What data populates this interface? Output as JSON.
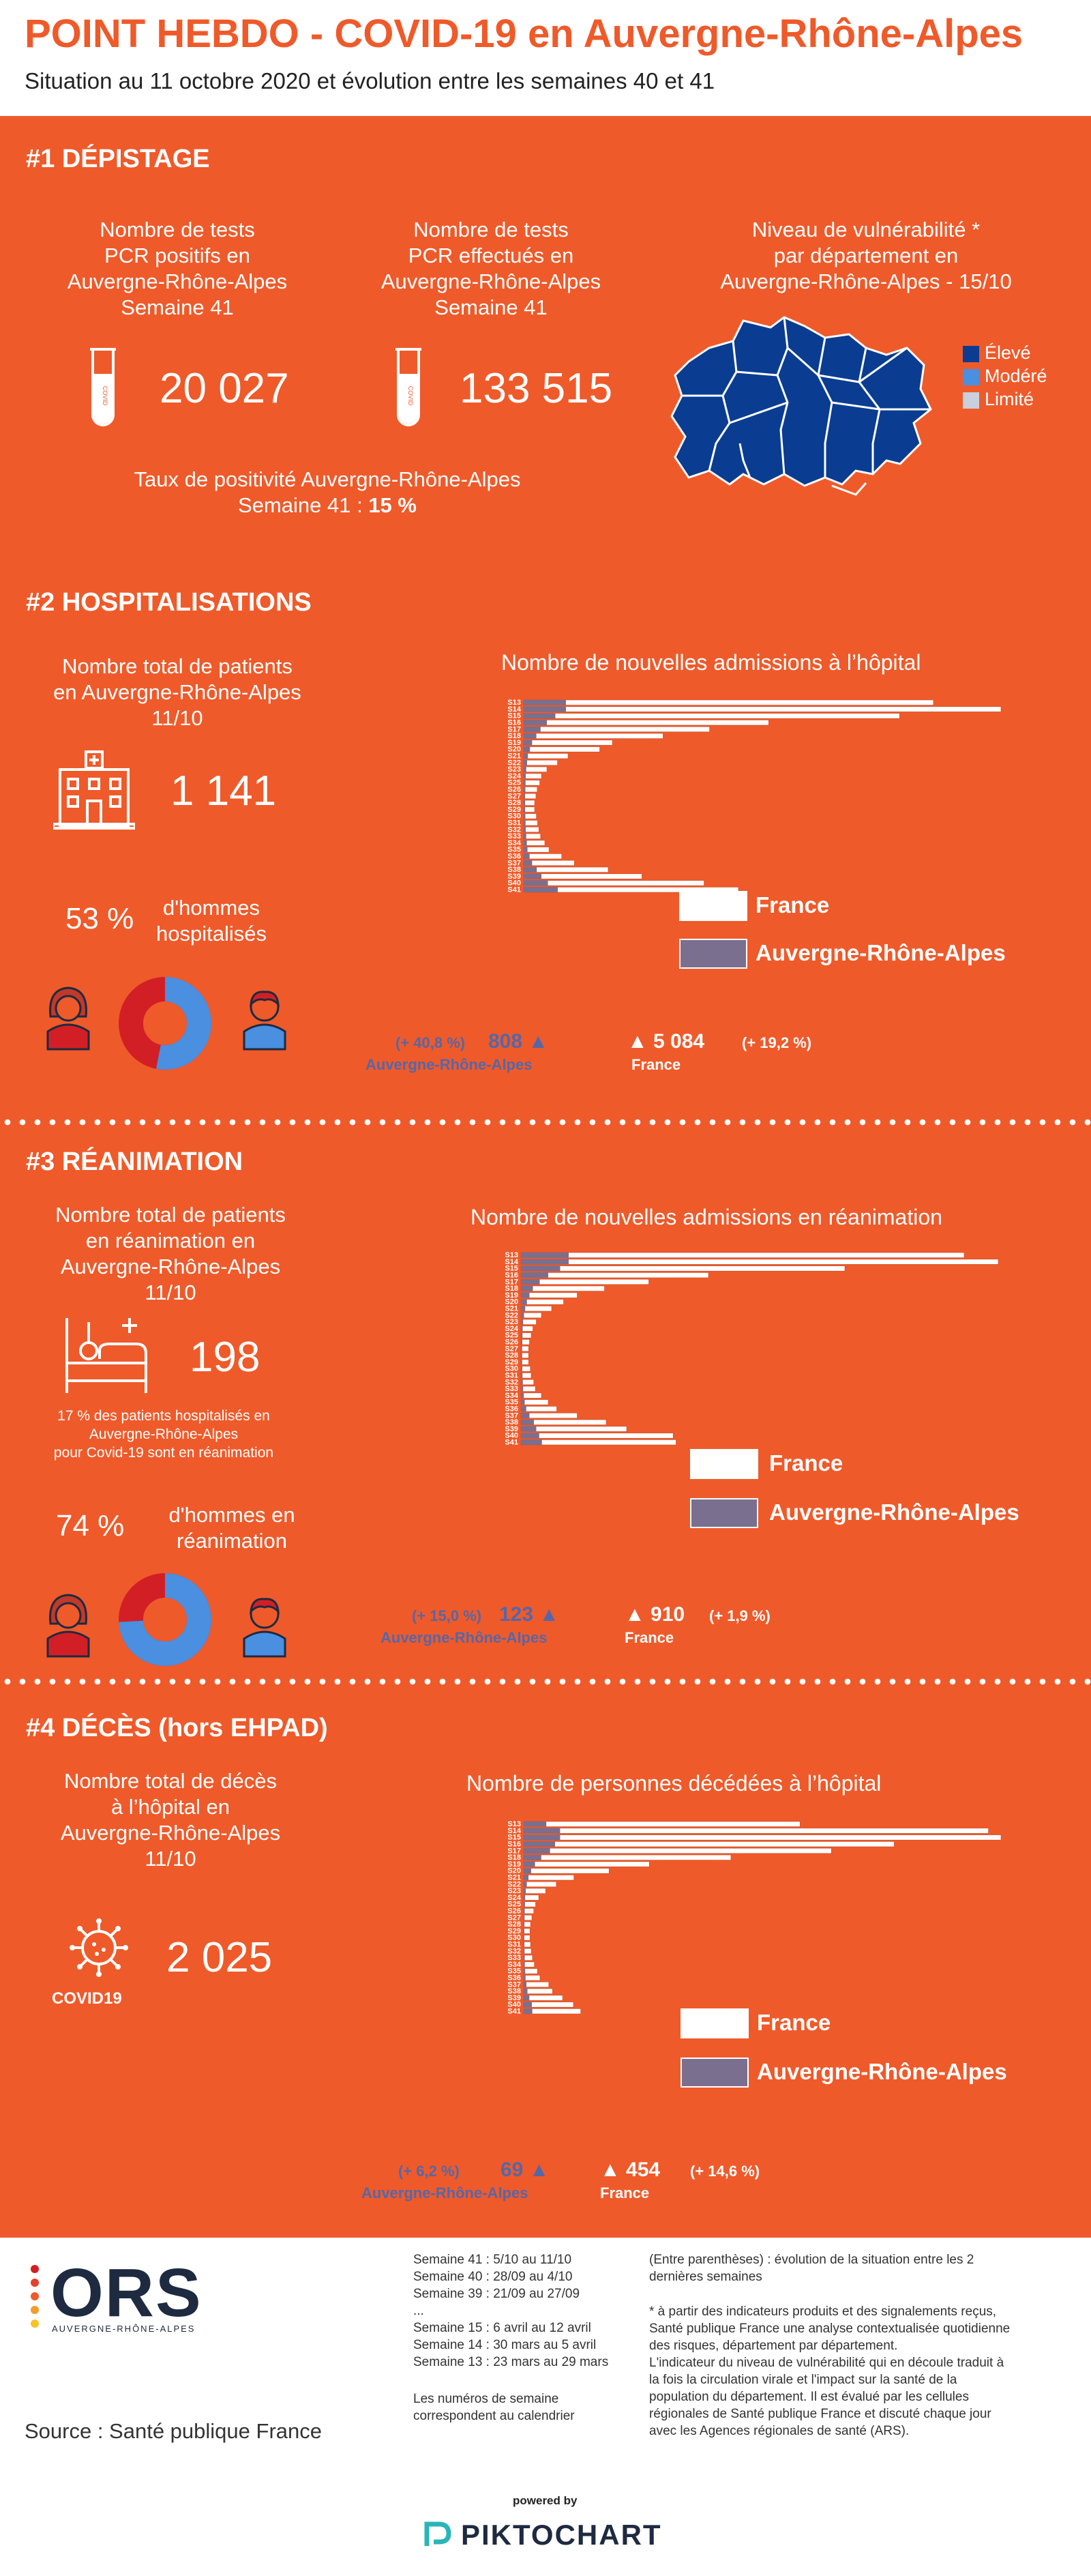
{
  "header": {
    "title": "POINT HEBDO - COVID-19 en Auvergne-Rhône-Alpes",
    "subtitle": "Situation au 11 octobre 2020 et évolution entre les semaines 40 et 41"
  },
  "colors": {
    "orange": "#ef5a2a",
    "france_bar": "#ffffff",
    "ara_bar": "#7a6f8f",
    "stat_blue": "#5567a8",
    "map_blue": "#0a3d91",
    "donut_red": "#d21f26",
    "donut_blue": "#4a8fe0",
    "level_high": "#0a3d91",
    "level_mid": "#4a8fe0",
    "level_low": "#c9cfdc"
  },
  "depistage": {
    "title": "#1 DÉPISTAGE",
    "positive_label": "Nombre de tests\nPCR positifs en\nAuvergne-Rhône-Alpes\nSemaine 41",
    "positive_value": "20 027",
    "performed_label": "Nombre de tests\nPCR effectués en\nAuvergne-Rhône-Alpes\nSemaine 41",
    "performed_value": "133 515",
    "tube_text": "COVID",
    "positivity_label": "Taux de positivité Auvergne-Rhône-Alpes",
    "positivity_line2": "Semaine 41 : ",
    "positivity_value": "15 %",
    "map_label": "Niveau de vulnérabilité *\npar département en\nAuvergne-Rhône-Alpes - 15/10",
    "legend": [
      {
        "label": "Élevé",
        "color": "#0a3d91"
      },
      {
        "label": "Modéré",
        "color": "#4a8fe0"
      },
      {
        "label": "Limité",
        "color": "#c9cfdc"
      }
    ]
  },
  "hospital": {
    "title": "#2 HOSPITALISATIONS",
    "total_label": "Nombre total de patients\nen Auvergne-Rhône-Alpes\n11/10",
    "total_value": "1 141",
    "men_pct": "53 %",
    "men_label": "d'hommes\nhospitalisés",
    "men_fraction": 0.53,
    "chart_title": "Nombre de nouvelles admissions à l’hôpital",
    "legend_france": "France",
    "legend_ara": "Auvergne-Rhône-Alpes",
    "ara_change": "(+ 40,8 %)",
    "ara_value": "808 ▲",
    "ara_label": "Auvergne-Rhône-Alpes",
    "fr_value": "▲ 5 084",
    "fr_change": "(+ 19,2 %)",
    "fr_label": "France"
  },
  "reanimation": {
    "title": "#3 RÉANIMATION",
    "total_label": "Nombre total de patients\nen réanimation en\nAuvergne-Rhône-Alpes\n11/10",
    "total_value": "198",
    "note": "17 % des patients hospitalisés en\nAuvergne-Rhône-Alpes\npour Covid-19 sont en réanimation",
    "men_pct": "74 %",
    "men_label": "d'hommes en\nréanimation",
    "men_fraction": 0.74,
    "chart_title": "Nombre de nouvelles admissions en réanimation",
    "legend_france": "France",
    "legend_ara": "Auvergne-Rhône-Alpes",
    "ara_change": "(+ 15,0 %)",
    "ara_value": "123 ▲",
    "ara_label": "Auvergne-Rhône-Alpes",
    "fr_value": "▲ 910",
    "fr_change": "(+ 1,9 %)",
    "fr_label": "France"
  },
  "deces": {
    "title": "#4 DÉCÈS (hors EHPAD)",
    "total_label": "Nombre total de décès\nà l’hôpital en\nAuvergne-Rhône-Alpes\n11/10",
    "total_value": "2 025",
    "covid_label": "COVID19",
    "chart_title": "Nombre de personnes décédées à l’hôpital",
    "legend_france": "France",
    "legend_ara": "Auvergne-Rhône-Alpes",
    "ara_change": "(+ 6,2 %)",
    "ara_value": "69 ▲",
    "ara_label": "Auvergne-Rhône-Alpes",
    "fr_value": "▲ 454",
    "fr_change": "(+ 14,6 %)",
    "fr_label": "France"
  },
  "chart_data": [
    {
      "type": "bar",
      "title": "Nombre de nouvelles admissions à l’hôpital",
      "categories": [
        "S13",
        "S14",
        "S15",
        "S16",
        "S17",
        "S18",
        "S19",
        "S20",
        "S21",
        "S22",
        "S23",
        "S24",
        "S25",
        "S26",
        "S27",
        "S28",
        "S29",
        "S30",
        "S31",
        "S32",
        "S33",
        "S34",
        "S35",
        "S36",
        "S37",
        "S38",
        "S39",
        "S40",
        "S41"
      ],
      "series": [
        {
          "name": "France",
          "values": [
            9700,
            11300,
            8900,
            5800,
            4400,
            3300,
            2100,
            1800,
            1050,
            800,
            550,
            420,
            380,
            320,
            290,
            260,
            260,
            300,
            330,
            360,
            400,
            500,
            600,
            900,
            1200,
            2000,
            2800,
            4270,
            5084
          ]
        },
        {
          "name": "Auvergne-Rhône-Alpes",
          "values": [
            1000,
            1000,
            750,
            550,
            400,
            300,
            200,
            150,
            100,
            80,
            60,
            50,
            45,
            40,
            35,
            35,
            35,
            40,
            45,
            50,
            60,
            75,
            90,
            140,
            200,
            310,
            420,
            574,
            808
          ]
        }
      ]
    },
    {
      "type": "bar",
      "title": "Nombre de nouvelles admissions en réanimation",
      "categories": [
        "S13",
        "S14",
        "S15",
        "S16",
        "S17",
        "S18",
        "S19",
        "S20",
        "S21",
        "S22",
        "S23",
        "S24",
        "S25",
        "S26",
        "S27",
        "S28",
        "S29",
        "S30",
        "S31",
        "S32",
        "S33",
        "S34",
        "S35",
        "S36",
        "S37",
        "S38",
        "S39",
        "S40",
        "S41"
      ],
      "series": [
        {
          "name": "France",
          "values": [
            2600,
            2800,
            1900,
            1100,
            750,
            490,
            330,
            250,
            180,
            120,
            90,
            70,
            60,
            50,
            45,
            45,
            45,
            55,
            60,
            75,
            85,
            120,
            160,
            210,
            330,
            500,
            620,
            893,
            910
          ]
        },
        {
          "name": "Auvergne-Rhône-Alpes",
          "values": [
            280,
            280,
            230,
            160,
            110,
            70,
            50,
            35,
            25,
            18,
            13,
            10,
            9,
            8,
            7,
            7,
            7,
            8,
            9,
            11,
            13,
            17,
            22,
            31,
            50,
            76,
            90,
            107,
            123
          ]
        }
      ]
    },
    {
      "type": "bar",
      "title": "Nombre de personnes décédées à l’hôpital",
      "categories": [
        "S13",
        "S14",
        "S15",
        "S16",
        "S17",
        "S18",
        "S19",
        "S20",
        "S21",
        "S22",
        "S23",
        "S24",
        "S25",
        "S26",
        "S27",
        "S28",
        "S29",
        "S30",
        "S31",
        "S32",
        "S33",
        "S34",
        "S35",
        "S36",
        "S37",
        "S38",
        "S39",
        "S40",
        "S41"
      ],
      "series": [
        {
          "name": "France",
          "values": [
            2200,
            3700,
            3800,
            2950,
            2450,
            1650,
            1000,
            680,
            400,
            260,
            175,
            120,
            95,
            80,
            65,
            55,
            50,
            50,
            55,
            60,
            70,
            85,
            110,
            130,
            200,
            230,
            310,
            396,
            454
          ]
        },
        {
          "name": "Auvergne-Rhône-Alpes",
          "values": [
            180,
            290,
            290,
            250,
            210,
            140,
            90,
            60,
            38,
            25,
            17,
            12,
            10,
            8,
            7,
            6,
            5,
            5,
            6,
            7,
            8,
            9,
            12,
            15,
            22,
            30,
            45,
            65,
            69
          ]
        }
      ]
    }
  ],
  "footer": {
    "logo_text": "ORS",
    "logo_sub": "AUVERGNE-RHÔNE-ALPES",
    "source": "Source : Santé publique France",
    "weeks": "Semaine 41 : 5/10 au 11/10\nSemaine 40 : 28/09 au 4/10\nSemaine 39 : 21/09 au 27/09\n...\nSemaine 15 : 6 avril au 12 avril\nSemaine 14 : 30 mars au 5 avril\nSemaine 13 : 23 mars au 29 mars",
    "weeks_note": "Les numéros de semaine\ncorrespondent au calendrier",
    "paren_note": "(Entre parenthèses) : évolution de la situation entre les 2\ndernières semaines",
    "vuln_note": "* à partir des indicateurs produits et des signalements reçus,\nSanté publique France une analyse contextualisée quotidienne\ndes risques, département par département.\nL'indicateur du niveau de vulnérabilité qui en découle traduit à\nla fois la circulation virale et l'impact sur la santé de la\npopulation du département. Il est évalué par les cellules\nrégionales de Santé publique France et discuté chaque jour\navec les Agences régionales de santé (ARS).",
    "powered_by": "powered by",
    "brand": "PIKTOCHART"
  }
}
